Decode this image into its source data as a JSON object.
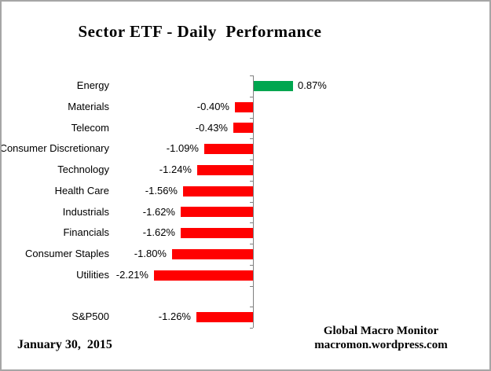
{
  "title": "Sector ETF - Daily  Performance",
  "footer": {
    "date": "January 30,  2015",
    "credit_line1": "Global Macro Monitor",
    "credit_line2": "macromon.wordpress.com"
  },
  "colors": {
    "positive_bar": "#00A64F",
    "negative_bar": "#FF0000",
    "axis": "#808080",
    "text": "#000000"
  },
  "chart_data": {
    "type": "bar",
    "orientation": "horizontal",
    "title": "Sector ETF - Daily Performance",
    "xlabel": "",
    "ylabel": "",
    "grid": false,
    "legend": false,
    "axis_value_at": 0,
    "categories": [
      "Energy",
      "Materials",
      "Telecom",
      "Consumer Discretionary",
      "Technology",
      "Health Care",
      "Industrials",
      "Financials",
      "Consumer Staples",
      "Utilities",
      "",
      "S&P500"
    ],
    "values": [
      0.87,
      -0.4,
      -0.43,
      -1.09,
      -1.24,
      -1.56,
      -1.62,
      -1.62,
      -1.8,
      -2.21,
      null,
      -1.26
    ],
    "value_labels": [
      "0.87%",
      "-0.40%",
      "-0.43%",
      "-1.09%",
      "-1.24%",
      "-1.56%",
      "-1.62%",
      "-1.62%",
      "-1.80%",
      "-2.21%",
      "",
      "-1.26%"
    ]
  }
}
